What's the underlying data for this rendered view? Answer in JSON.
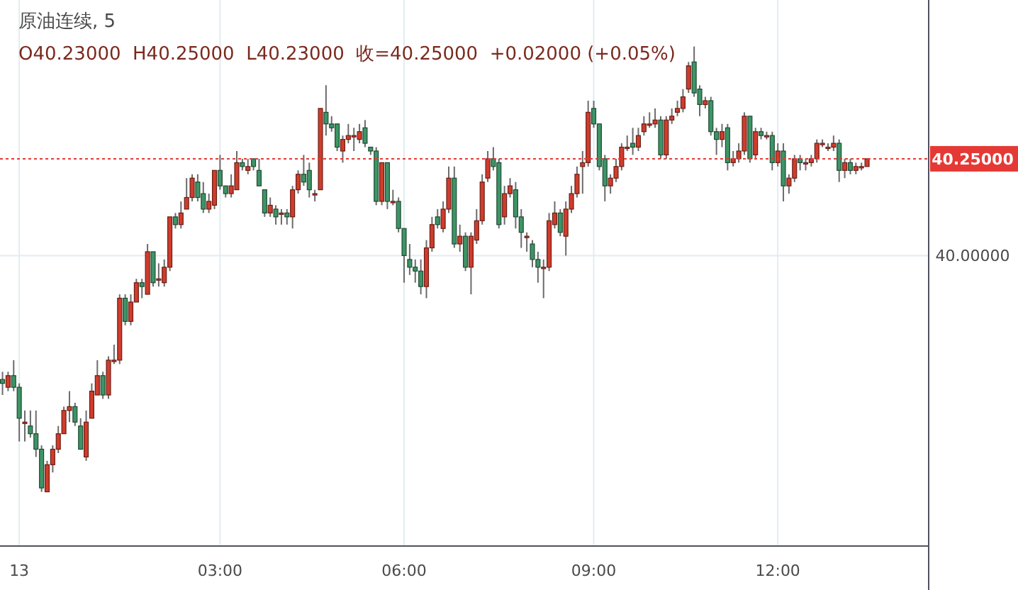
{
  "chart_data": {
    "type": "candlestick",
    "title": "原油连续, 5",
    "subtitle": "O40.23000  H40.25000  L40.23000  收=40.25000  +0.02000 (+0.05%)",
    "categories": [
      null,
      null,
      null,
      "13",
      null,
      null,
      null,
      null,
      null,
      null,
      null,
      null,
      null,
      null,
      null,
      null,
      null,
      null,
      null,
      null,
      null,
      null,
      null,
      null,
      null,
      null,
      null,
      null,
      null,
      null,
      null,
      null,
      null,
      null,
      null,
      null,
      null,
      null,
      null,
      "03:00",
      null,
      null,
      null,
      null,
      null,
      null,
      null,
      null,
      null,
      null,
      null,
      null,
      null,
      null,
      null,
      null,
      null,
      null,
      null,
      null,
      null,
      null,
      null,
      null,
      null,
      null,
      null,
      null,
      null,
      null,
      null,
      null,
      "06:00",
      null,
      null,
      null,
      null,
      null,
      null,
      null,
      null,
      null,
      null,
      null,
      null,
      null,
      null,
      null,
      null,
      null,
      null,
      null,
      null,
      null,
      null,
      null,
      null,
      null,
      null,
      null,
      null,
      null,
      null,
      null,
      null,
      null,
      "09:00",
      null,
      null,
      null,
      null,
      null,
      null,
      null,
      null,
      null,
      null,
      null,
      null,
      null,
      null,
      null,
      null,
      null,
      null,
      null,
      null,
      null,
      null,
      null,
      null,
      null,
      null,
      null,
      null,
      null,
      null,
      null,
      null,
      "12:00",
      null,
      null,
      null,
      null,
      null,
      null,
      null,
      null,
      null,
      null,
      null,
      null,
      null,
      null,
      null,
      null
    ],
    "ohlc": [
      [
        39.68,
        39.7,
        39.64,
        39.67
      ],
      [
        39.66,
        39.7,
        39.65,
        39.69
      ],
      [
        39.69,
        39.73,
        39.65,
        39.66
      ],
      [
        39.66,
        39.67,
        39.52,
        39.58
      ],
      [
        39.57,
        39.6,
        39.52,
        39.57
      ],
      [
        39.56,
        39.6,
        39.53,
        39.54
      ],
      [
        39.54,
        39.6,
        39.48,
        39.5
      ],
      [
        39.5,
        39.51,
        39.39,
        39.4
      ],
      [
        39.39,
        39.47,
        39.39,
        39.46
      ],
      [
        39.46,
        39.51,
        39.44,
        39.5
      ],
      [
        39.5,
        39.56,
        39.49,
        39.54
      ],
      [
        39.54,
        39.61,
        39.54,
        39.6
      ],
      [
        39.6,
        39.65,
        39.57,
        39.61
      ],
      [
        39.61,
        39.62,
        39.56,
        39.57
      ],
      [
        39.56,
        39.58,
        39.5,
        39.5
      ],
      [
        39.48,
        39.6,
        39.47,
        39.57
      ],
      [
        39.58,
        39.67,
        39.58,
        39.65
      ],
      [
        39.64,
        39.73,
        39.64,
        39.69
      ],
      [
        39.69,
        39.7,
        39.63,
        39.64
      ],
      [
        39.64,
        39.74,
        39.63,
        39.73
      ],
      [
        39.73,
        39.77,
        39.72,
        39.73
      ],
      [
        39.73,
        39.9,
        39.72,
        39.89
      ],
      [
        39.89,
        39.9,
        39.82,
        39.83
      ],
      [
        39.83,
        39.9,
        39.82,
        39.88
      ],
      [
        39.88,
        39.94,
        39.88,
        39.93
      ],
      [
        39.93,
        39.94,
        39.89,
        39.92
      ],
      [
        39.9,
        40.03,
        39.9,
        40.01
      ],
      [
        40.01,
        40.01,
        39.92,
        39.93
      ],
      [
        39.94,
        39.98,
        39.92,
        39.94
      ],
      [
        39.93,
        39.99,
        39.92,
        39.97
      ],
      [
        39.97,
        40.1,
        39.96,
        40.1
      ],
      [
        40.1,
        40.11,
        40.07,
        40.08
      ],
      [
        40.08,
        40.14,
        40.07,
        40.11
      ],
      [
        40.12,
        40.2,
        40.12,
        40.15
      ],
      [
        40.15,
        40.21,
        40.14,
        40.2
      ],
      [
        40.19,
        40.21,
        40.14,
        40.15
      ],
      [
        40.16,
        40.19,
        40.11,
        40.12
      ],
      [
        40.12,
        40.16,
        40.11,
        40.14
      ],
      [
        40.13,
        40.22,
        40.12,
        40.22
      ],
      [
        40.22,
        40.26,
        40.17,
        40.18
      ],
      [
        40.18,
        40.18,
        40.15,
        40.16
      ],
      [
        40.16,
        40.21,
        40.15,
        40.18
      ],
      [
        40.17,
        40.27,
        40.17,
        40.24
      ],
      [
        40.24,
        40.25,
        40.22,
        40.23
      ],
      [
        40.22,
        40.25,
        40.21,
        40.23
      ],
      [
        40.25,
        40.25,
        40.22,
        40.23
      ],
      [
        40.22,
        40.25,
        40.18,
        40.18
      ],
      [
        40.17,
        40.17,
        40.1,
        40.11
      ],
      [
        40.11,
        40.15,
        40.1,
        40.13
      ],
      [
        40.12,
        40.13,
        40.08,
        40.1
      ],
      [
        40.11,
        40.12,
        40.08,
        40.11
      ],
      [
        40.11,
        40.12,
        40.08,
        40.1
      ],
      [
        40.1,
        40.18,
        40.07,
        40.17
      ],
      [
        40.17,
        40.22,
        40.16,
        40.21
      ],
      [
        40.21,
        40.26,
        40.18,
        40.19
      ],
      [
        40.22,
        40.24,
        40.15,
        40.17
      ],
      [
        40.16,
        40.17,
        40.14,
        40.16
      ],
      [
        40.17,
        40.38,
        40.17,
        40.38
      ],
      [
        40.37,
        40.44,
        40.31,
        40.34
      ],
      [
        40.34,
        40.36,
        40.32,
        40.33
      ],
      [
        40.34,
        40.34,
        40.27,
        40.28
      ],
      [
        40.27,
        40.31,
        40.24,
        40.3
      ],
      [
        40.3,
        40.34,
        40.29,
        40.31
      ],
      [
        40.31,
        40.33,
        40.27,
        40.31
      ],
      [
        40.3,
        40.34,
        40.29,
        40.32
      ],
      [
        40.33,
        40.35,
        40.28,
        40.29
      ],
      [
        40.28,
        40.28,
        40.26,
        40.27
      ],
      [
        40.27,
        40.28,
        40.13,
        40.14
      ],
      [
        40.14,
        40.24,
        40.13,
        40.24
      ],
      [
        40.24,
        40.24,
        40.12,
        40.14
      ],
      [
        40.14,
        40.17,
        40.13,
        40.14
      ],
      [
        40.14,
        40.15,
        40.06,
        40.07
      ],
      [
        40.07,
        40.07,
        39.93,
        40.0
      ],
      [
        39.99,
        40.03,
        39.95,
        39.97
      ],
      [
        39.97,
        39.99,
        39.93,
        39.96
      ],
      [
        39.96,
        39.99,
        39.9,
        39.92
      ],
      [
        39.92,
        40.04,
        39.89,
        40.02
      ],
      [
        40.02,
        40.1,
        40.01,
        40.08
      ],
      [
        40.1,
        40.12,
        40.07,
        40.08
      ],
      [
        40.07,
        40.14,
        40.06,
        40.12
      ],
      [
        40.12,
        40.23,
        40.11,
        40.2
      ],
      [
        40.2,
        40.23,
        40.02,
        40.03
      ],
      [
        40.03,
        40.08,
        40.01,
        40.05
      ],
      [
        40.05,
        40.06,
        39.96,
        39.97
      ],
      [
        39.97,
        40.06,
        39.9,
        40.05
      ],
      [
        40.04,
        40.12,
        40.03,
        40.09
      ],
      [
        40.09,
        40.21,
        40.08,
        40.19
      ],
      [
        40.2,
        40.27,
        40.19,
        40.25
      ],
      [
        40.25,
        40.28,
        40.22,
        40.23
      ],
      [
        40.24,
        40.25,
        40.07,
        40.08
      ],
      [
        40.1,
        40.18,
        40.08,
        40.16
      ],
      [
        40.16,
        40.2,
        40.15,
        40.18
      ],
      [
        40.17,
        40.19,
        40.07,
        40.1
      ],
      [
        40.1,
        40.12,
        40.02,
        40.06
      ],
      [
        40.05,
        40.06,
        40.01,
        40.05
      ],
      [
        40.03,
        40.04,
        39.97,
        39.99
      ],
      [
        39.99,
        40.01,
        39.93,
        39.97
      ],
      [
        39.97,
        39.99,
        39.89,
        39.97
      ],
      [
        39.97,
        40.11,
        39.96,
        40.09
      ],
      [
        40.08,
        40.14,
        40.07,
        40.11
      ],
      [
        40.11,
        40.12,
        40.05,
        40.06
      ],
      [
        40.05,
        40.14,
        40.0,
        40.12
      ],
      [
        40.12,
        40.18,
        40.11,
        40.16
      ],
      [
        40.16,
        40.23,
        40.15,
        40.21
      ],
      [
        40.23,
        40.27,
        40.16,
        40.24
      ],
      [
        40.24,
        40.4,
        40.23,
        40.37
      ],
      [
        40.38,
        40.4,
        40.33,
        40.34
      ],
      [
        40.34,
        40.34,
        40.22,
        40.23
      ],
      [
        40.25,
        40.26,
        40.14,
        40.18
      ],
      [
        40.18,
        40.21,
        40.16,
        40.2
      ],
      [
        40.2,
        40.25,
        40.19,
        40.23
      ],
      [
        40.23,
        40.29,
        40.22,
        40.28
      ],
      [
        40.28,
        40.31,
        40.27,
        40.28
      ],
      [
        40.29,
        40.33,
        40.26,
        40.28
      ],
      [
        40.28,
        40.33,
        40.27,
        40.31
      ],
      [
        40.32,
        40.36,
        40.31,
        40.34
      ],
      [
        40.34,
        40.37,
        40.33,
        40.34
      ],
      [
        40.34,
        40.38,
        40.33,
        40.35
      ],
      [
        40.35,
        40.36,
        40.25,
        40.26
      ],
      [
        40.26,
        40.36,
        40.25,
        40.35
      ],
      [
        40.35,
        40.38,
        40.34,
        40.36
      ],
      [
        40.37,
        40.4,
        40.36,
        40.38
      ],
      [
        40.38,
        40.43,
        40.37,
        40.41
      ],
      [
        40.43,
        40.5,
        40.42,
        40.49
      ],
      [
        40.5,
        40.54,
        40.41,
        40.42
      ],
      [
        40.43,
        40.44,
        40.36,
        40.39
      ],
      [
        40.39,
        40.41,
        40.38,
        40.4
      ],
      [
        40.4,
        40.41,
        40.31,
        40.32
      ],
      [
        40.32,
        40.33,
        40.26,
        40.3
      ],
      [
        40.3,
        40.34,
        40.28,
        40.32
      ],
      [
        40.33,
        40.34,
        40.22,
        40.24
      ],
      [
        40.24,
        40.27,
        40.23,
        40.25
      ],
      [
        40.25,
        40.29,
        40.24,
        40.27
      ],
      [
        40.27,
        40.37,
        40.26,
        40.36
      ],
      [
        40.36,
        40.36,
        40.24,
        40.25
      ],
      [
        40.26,
        40.33,
        40.25,
        40.32
      ],
      [
        40.32,
        40.33,
        40.3,
        40.31
      ],
      [
        40.31,
        40.32,
        40.3,
        40.31
      ],
      [
        40.31,
        40.32,
        40.22,
        40.24
      ],
      [
        40.24,
        40.29,
        40.23,
        40.27
      ],
      [
        40.27,
        40.29,
        40.14,
        40.18
      ],
      [
        40.18,
        40.21,
        40.16,
        40.2
      ],
      [
        40.2,
        40.26,
        40.19,
        40.25
      ],
      [
        40.25,
        40.26,
        40.22,
        40.24
      ],
      [
        40.24,
        40.25,
        40.22,
        40.24
      ],
      [
        40.24,
        40.26,
        40.23,
        40.25
      ],
      [
        40.25,
        40.3,
        40.24,
        40.29
      ],
      [
        40.29,
        40.3,
        40.28,
        40.29
      ],
      [
        40.28,
        40.29,
        40.27,
        40.28
      ],
      [
        40.28,
        40.31,
        40.27,
        40.29
      ],
      [
        40.29,
        40.3,
        40.19,
        40.22
      ],
      [
        40.22,
        40.25,
        40.2,
        40.24
      ],
      [
        40.24,
        40.25,
        40.21,
        40.22
      ],
      [
        40.22,
        40.24,
        40.21,
        40.23
      ],
      [
        40.23,
        40.24,
        40.22,
        40.23
      ],
      [
        40.23,
        40.25,
        40.23,
        40.25
      ]
    ],
    "colors": [
      "#3e9466",
      "#d03c2c",
      "#3e9466",
      "#3e9466",
      "#d03c2c",
      "#3e9466",
      "#3e9466",
      "#3e9466",
      "#d03c2c",
      "#d03c2c",
      "#d03c2c",
      "#d03c2c",
      "#d03c2c",
      "#3e9466",
      "#3e9466",
      "#d03c2c",
      "#d03c2c",
      "#d03c2c",
      "#3e9466",
      "#d03c2c",
      "#d03c2c",
      "#d03c2c",
      "#3e9466",
      "#d03c2c",
      "#d03c2c",
      "#3e9466",
      "#d03c2c",
      "#3e9466",
      "#d03c2c",
      "#d03c2c",
      "#d03c2c",
      "#3e9466",
      "#d03c2c",
      "#d03c2c",
      "#d03c2c",
      "#3e9466",
      "#3e9466",
      "#d03c2c",
      "#d03c2c",
      "#3e9466",
      "#3e9466",
      "#d03c2c",
      "#d03c2c",
      "#3e9466",
      "#d03c2c",
      "#3e9466",
      "#3e9466",
      "#3e9466",
      "#d03c2c",
      "#3e9466",
      "#d03c2c",
      "#3e9466",
      "#d03c2c",
      "#d03c2c",
      "#3e9466",
      "#3e9466",
      "#d03c2c",
      "#d03c2c",
      "#3e9466",
      "#3e9466",
      "#3e9466",
      "#d03c2c",
      "#d03c2c",
      "#d03c2c",
      "#d03c2c",
      "#3e9466",
      "#3e9466",
      "#3e9466",
      "#d03c2c",
      "#3e9466",
      "#d03c2c",
      "#3e9466",
      "#3e9466",
      "#3e9466",
      "#3e9466",
      "#3e9466",
      "#d03c2c",
      "#d03c2c",
      "#3e9466",
      "#d03c2c",
      "#d03c2c",
      "#3e9466",
      "#d03c2c",
      "#3e9466",
      "#d03c2c",
      "#d03c2c",
      "#d03c2c",
      "#d03c2c",
      "#3e9466",
      "#3e9466",
      "#d03c2c",
      "#d03c2c",
      "#3e9466",
      "#3e9466",
      "#d03c2c",
      "#3e9466",
      "#3e9466",
      "#d03c2c",
      "#d03c2c",
      "#d03c2c",
      "#3e9466",
      "#d03c2c",
      "#d03c2c",
      "#d03c2c",
      "#d03c2c",
      "#d03c2c",
      "#3e9466",
      "#3e9466",
      "#3e9466",
      "#d03c2c",
      "#d03c2c",
      "#d03c2c",
      "#d03c2c",
      "#3e9466",
      "#d03c2c",
      "#d03c2c",
      "#d03c2c",
      "#d03c2c",
      "#3e9466",
      "#d03c2c",
      "#d03c2c",
      "#d03c2c",
      "#d03c2c",
      "#d03c2c",
      "#3e9466",
      "#3e9466",
      "#d03c2c",
      "#3e9466",
      "#3e9466",
      "#d03c2c",
      "#3e9466",
      "#d03c2c",
      "#d03c2c",
      "#d03c2c",
      "#3e9466",
      "#d03c2c",
      "#3e9466",
      "#d03c2c",
      "#3e9466",
      "#d03c2c",
      "#3e9466",
      "#d03c2c",
      "#d03c2c",
      "#3e9466",
      "#d03c2c",
      "#d03c2c",
      "#d03c2c",
      "#d03c2c",
      "#d03c2c",
      "#d03c2c",
      "#3e9466",
      "#d03c2c",
      "#3e9466",
      "#d03c2c",
      "#d03c2c",
      "#d03c2c"
    ],
    "ylim": [
      39.25,
      40.66
    ],
    "yticks": [
      {
        "value": 40,
        "label": "40.00000"
      },
      {
        "value": 40.25,
        "label": "40.25000"
      }
    ],
    "ref_lines": [
      {
        "axis": "y",
        "value": 40.25,
        "color": "#e53935",
        "line_style": "dotted"
      }
    ],
    "grid": true
  }
}
